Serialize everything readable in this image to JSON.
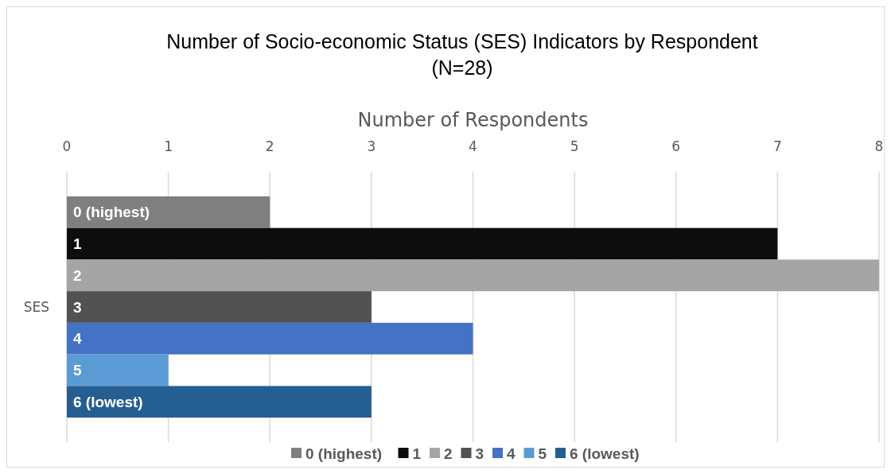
{
  "chart_data": {
    "type": "bar",
    "orientation": "horizontal",
    "title": "Number of Socio-economic Status (SES) Indicators by Respondent\n(N=28)",
    "xlabel": "Number of Respondents",
    "categories": [
      "SES"
    ],
    "series": [
      {
        "name": "0 (highest)",
        "color": "#7f7f7f",
        "values": [
          2
        ]
      },
      {
        "name": "1",
        "color": "#0d0d0d",
        "values": [
          7
        ]
      },
      {
        "name": "2",
        "color": "#a5a5a5",
        "values": [
          8
        ]
      },
      {
        "name": "3",
        "color": "#525252",
        "values": [
          3
        ]
      },
      {
        "name": "4",
        "color": "#4472c4",
        "values": [
          4
        ]
      },
      {
        "name": "5",
        "color": "#5b9bd5",
        "values": [
          1
        ]
      },
      {
        "name": "6 (lowest)",
        "color": "#255e91",
        "values": [
          3
        ]
      }
    ],
    "xlim": [
      0,
      8
    ],
    "xticks": [
      0,
      1,
      2,
      3,
      4,
      5,
      6,
      7,
      8
    ],
    "grid": "x",
    "legend": "bottom"
  }
}
